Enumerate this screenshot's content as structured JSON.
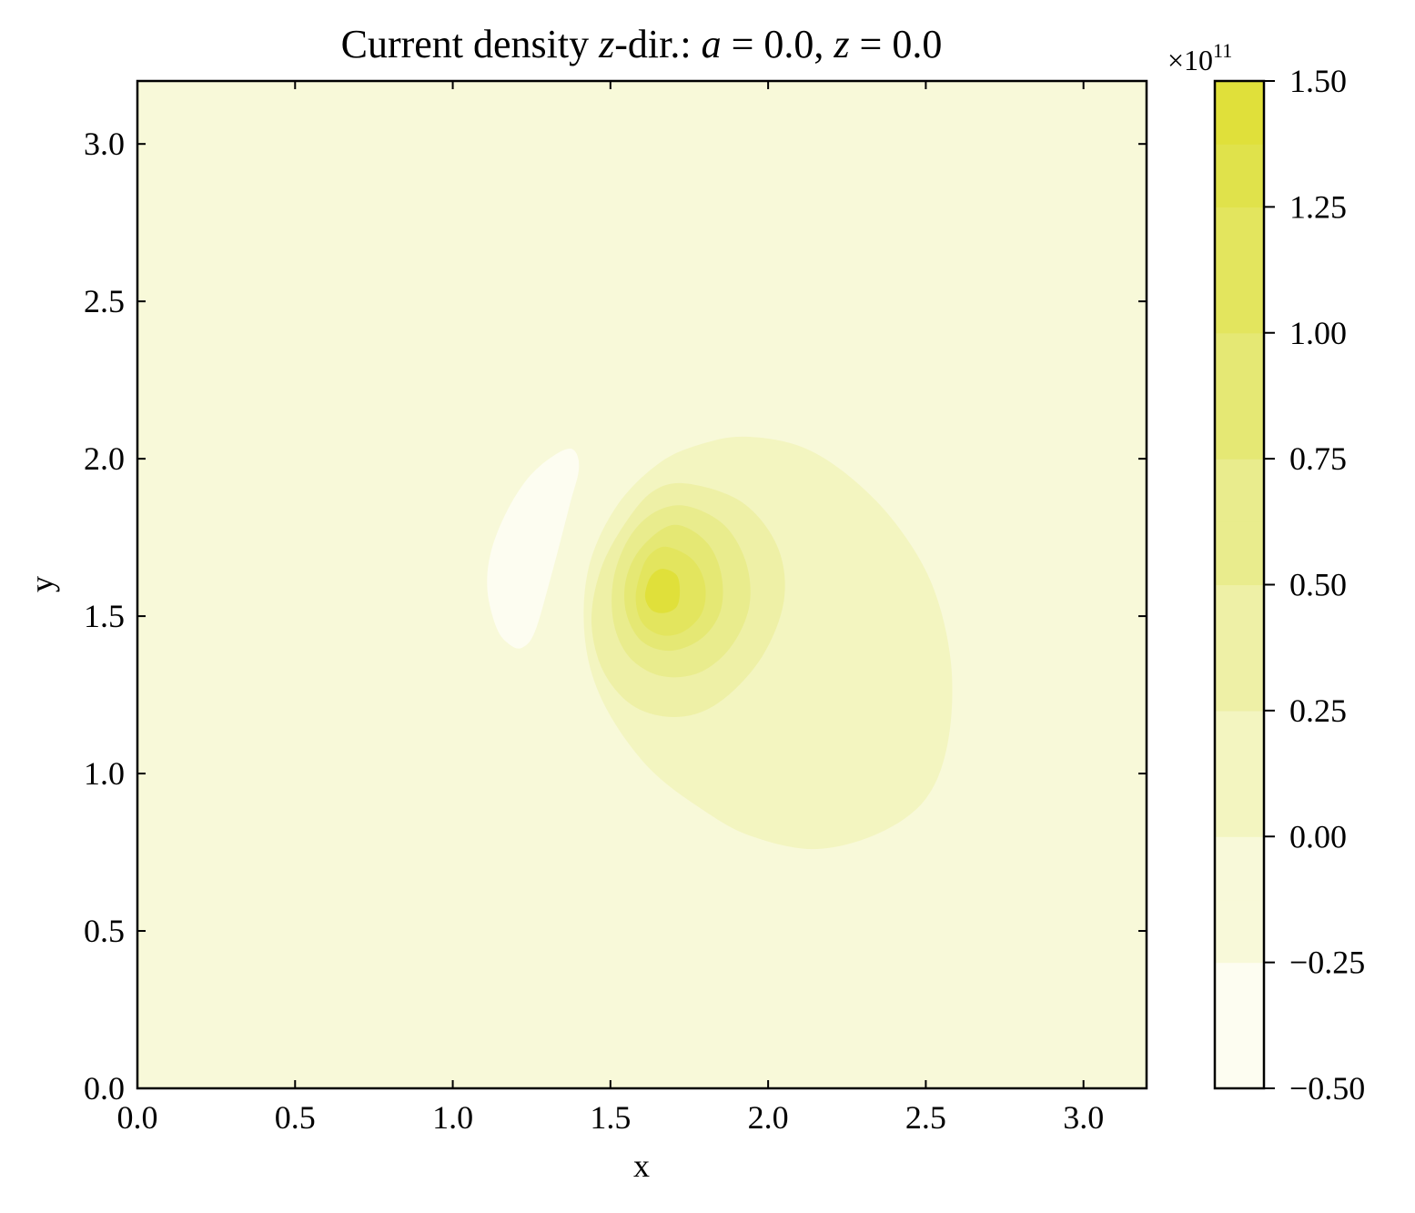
{
  "chart_data": {
    "type": "heatmap",
    "title": "Current density z-dir.: a = 0.0, z = 0.0",
    "title_parts": {
      "prefix": "Current density ",
      "z_var": "z",
      "dir_text": "-dir.: ",
      "a_var": "a",
      "a_eq": " = 0.0, ",
      "z2_var": "z",
      "z_eq": " = 0.0"
    },
    "xlabel": "x",
    "ylabel": "y",
    "xlim": [
      0.0,
      3.2
    ],
    "ylim": [
      0.0,
      3.2
    ],
    "xticks": [
      0.0,
      0.5,
      1.0,
      1.5,
      2.0,
      2.5,
      3.0
    ],
    "yticks": [
      0.0,
      0.5,
      1.0,
      1.5,
      2.0,
      2.5,
      3.0
    ],
    "xtick_labels": [
      "0.0",
      "0.5",
      "1.0",
      "1.5",
      "2.0",
      "2.5",
      "3.0"
    ],
    "ytick_labels": [
      "0.0",
      "0.5",
      "1.0",
      "1.5",
      "2.0",
      "2.5",
      "3.0"
    ],
    "colorbar": {
      "multiplier_base": "×10",
      "multiplier_exp": "11",
      "levels": [
        -0.5,
        -0.25,
        0.0,
        0.25,
        0.5,
        0.75,
        1.0,
        1.25,
        1.5
      ],
      "tick_labels": [
        "−0.50",
        "−0.25",
        "0.00",
        "0.25",
        "0.50",
        "0.75",
        "1.00",
        "1.25",
        "1.50"
      ],
      "bands": [
        {
          "from": -0.5,
          "to": -0.375,
          "color": "#fdfdf1"
        },
        {
          "from": -0.375,
          "to": -0.25,
          "color": "#fdfdf1"
        },
        {
          "from": -0.25,
          "to": -0.125,
          "color": "#f8f9d9"
        },
        {
          "from": -0.125,
          "to": 0.0,
          "color": "#f8f9d9"
        },
        {
          "from": 0.0,
          "to": 0.125,
          "color": "#f3f5c0"
        },
        {
          "from": 0.125,
          "to": 0.25,
          "color": "#f3f5c0"
        },
        {
          "from": 0.25,
          "to": 0.375,
          "color": "#eef0a6"
        },
        {
          "from": 0.375,
          "to": 0.5,
          "color": "#eef0a6"
        },
        {
          "from": 0.5,
          "to": 0.625,
          "color": "#e9ec8d"
        },
        {
          "from": 0.625,
          "to": 0.75,
          "color": "#e9ec8d"
        },
        {
          "from": 0.75,
          "to": 0.875,
          "color": "#e5e874"
        },
        {
          "from": 0.875,
          "to": 1.0,
          "color": "#e5e874"
        },
        {
          "from": 1.0,
          "to": 1.125,
          "color": "#e3e55e"
        },
        {
          "from": 1.125,
          "to": 1.25,
          "color": "#e3e55e"
        },
        {
          "from": 1.25,
          "to": 1.375,
          "color": "#e0e24b"
        },
        {
          "from": 1.375,
          "to": 1.5,
          "color": "#e0e03a"
        }
      ]
    },
    "background_color": "#f8f9d9",
    "contour_regions": [
      {
        "name": "negative-lobe",
        "level": -0.5,
        "color": "#fdfdf1",
        "path": [
          [
            1.22,
            1.4
          ],
          [
            1.26,
            1.45
          ],
          [
            1.31,
            1.62
          ],
          [
            1.37,
            1.85
          ],
          [
            1.4,
            1.97
          ],
          [
            1.38,
            2.03
          ],
          [
            1.32,
            2.01
          ],
          [
            1.24,
            1.94
          ],
          [
            1.17,
            1.83
          ],
          [
            1.12,
            1.7
          ],
          [
            1.11,
            1.58
          ],
          [
            1.14,
            1.46
          ],
          [
            1.18,
            1.41
          ]
        ]
      },
      {
        "name": "contour-0.00",
        "level": 0.0,
        "color": "#f3f5c0",
        "path": [
          [
            1.93,
            2.07
          ],
          [
            2.1,
            2.04
          ],
          [
            2.25,
            1.95
          ],
          [
            2.4,
            1.8
          ],
          [
            2.52,
            1.6
          ],
          [
            2.58,
            1.35
          ],
          [
            2.57,
            1.1
          ],
          [
            2.5,
            0.92
          ],
          [
            2.35,
            0.81
          ],
          [
            2.15,
            0.76
          ],
          [
            1.95,
            0.8
          ],
          [
            1.8,
            0.88
          ],
          [
            1.62,
            1.02
          ],
          [
            1.48,
            1.22
          ],
          [
            1.42,
            1.42
          ],
          [
            1.43,
            1.65
          ],
          [
            1.52,
            1.85
          ],
          [
            1.66,
            1.99
          ],
          [
            1.8,
            2.05
          ]
        ]
      },
      {
        "name": "contour-0.25",
        "level": 0.25,
        "color": "#eef0a6",
        "path": [
          [
            1.75,
            1.92
          ],
          [
            1.92,
            1.86
          ],
          [
            2.03,
            1.72
          ],
          [
            2.05,
            1.55
          ],
          [
            1.98,
            1.37
          ],
          [
            1.85,
            1.23
          ],
          [
            1.72,
            1.18
          ],
          [
            1.58,
            1.21
          ],
          [
            1.48,
            1.32
          ],
          [
            1.44,
            1.48
          ],
          [
            1.47,
            1.65
          ],
          [
            1.55,
            1.8
          ],
          [
            1.64,
            1.9
          ]
        ]
      },
      {
        "name": "contour-0.50",
        "level": 0.5,
        "color": "#e9ec8d",
        "path": [
          [
            1.74,
            1.85
          ],
          [
            1.86,
            1.79
          ],
          [
            1.93,
            1.67
          ],
          [
            1.94,
            1.53
          ],
          [
            1.88,
            1.4
          ],
          [
            1.78,
            1.32
          ],
          [
            1.66,
            1.31
          ],
          [
            1.56,
            1.37
          ],
          [
            1.51,
            1.48
          ],
          [
            1.51,
            1.62
          ],
          [
            1.56,
            1.75
          ],
          [
            1.64,
            1.83
          ]
        ]
      },
      {
        "name": "contour-0.75",
        "level": 0.75,
        "color": "#e5e874",
        "path": [
          [
            1.7,
            1.79
          ],
          [
            1.8,
            1.74
          ],
          [
            1.85,
            1.64
          ],
          [
            1.85,
            1.52
          ],
          [
            1.79,
            1.43
          ],
          [
            1.69,
            1.39
          ],
          [
            1.6,
            1.42
          ],
          [
            1.55,
            1.51
          ],
          [
            1.55,
            1.62
          ],
          [
            1.6,
            1.72
          ]
        ]
      },
      {
        "name": "contour-1.00",
        "level": 1.0,
        "color": "#e3e55e",
        "path": [
          [
            1.68,
            1.72
          ],
          [
            1.76,
            1.68
          ],
          [
            1.8,
            1.6
          ],
          [
            1.79,
            1.51
          ],
          [
            1.73,
            1.45
          ],
          [
            1.66,
            1.44
          ],
          [
            1.6,
            1.48
          ],
          [
            1.58,
            1.56
          ],
          [
            1.6,
            1.65
          ],
          [
            1.63,
            1.7
          ]
        ]
      },
      {
        "name": "contour-1.25",
        "level": 1.25,
        "color": "#e0e03a",
        "path": [
          [
            1.67,
            1.65
          ],
          [
            1.71,
            1.63
          ],
          [
            1.72,
            1.58
          ],
          [
            1.71,
            1.53
          ],
          [
            1.67,
            1.51
          ],
          [
            1.63,
            1.52
          ],
          [
            1.61,
            1.56
          ],
          [
            1.62,
            1.61
          ],
          [
            1.64,
            1.64
          ]
        ]
      }
    ]
  }
}
